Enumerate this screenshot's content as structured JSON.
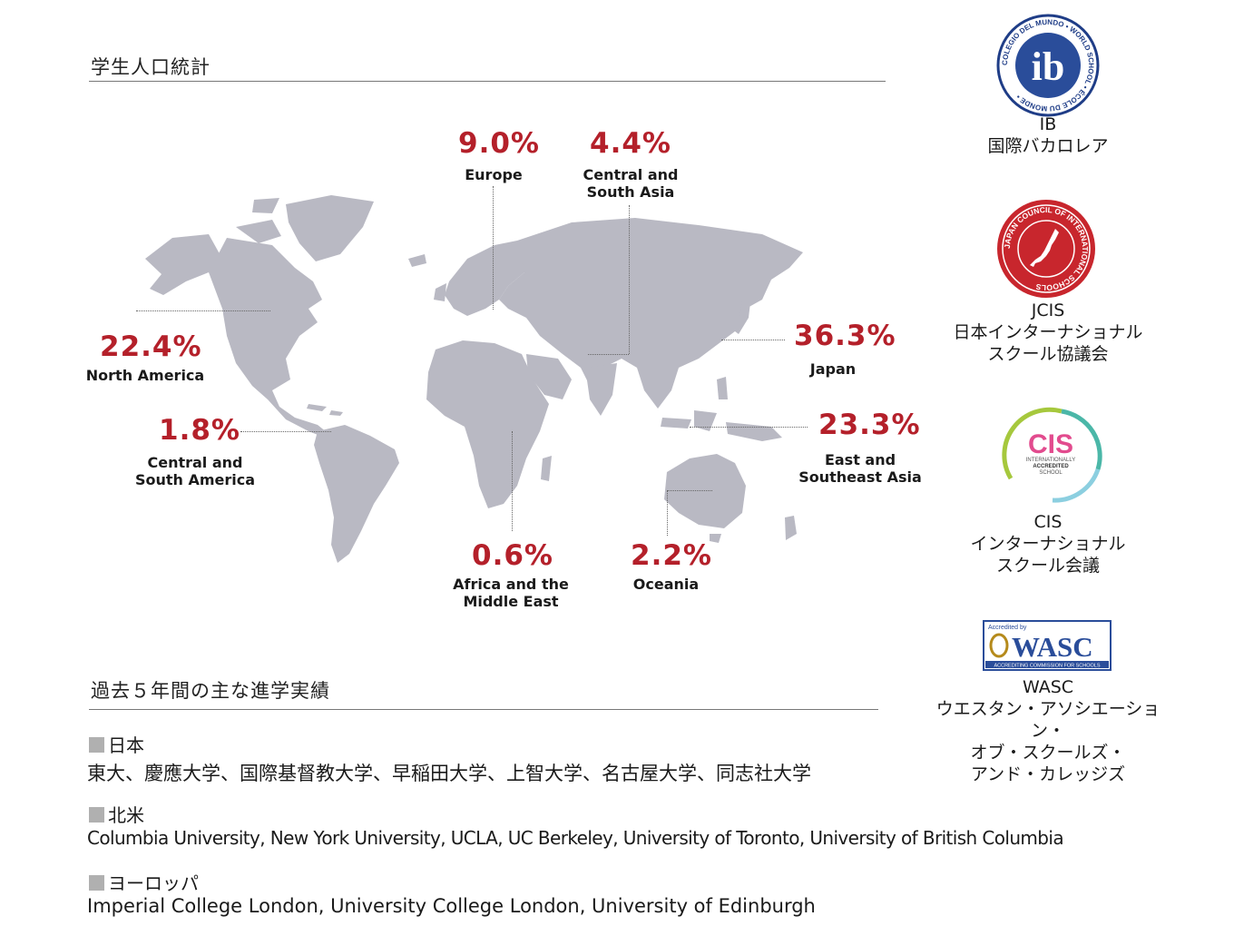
{
  "page": {
    "stats_title": "学生人口統計",
    "results_title": "過去５年間の主な進学実績"
  },
  "colors": {
    "accent": "#b4202a",
    "land": "#b9b9c3",
    "rule": "#777777"
  },
  "chart_data": {
    "type": "map",
    "title": "",
    "regions": [
      {
        "name": "Europe",
        "label": "Europe",
        "value": 9.0,
        "display": "9.0%"
      },
      {
        "name": "Central and South Asia",
        "label": "Central and\nSouth Asia",
        "value": 4.4,
        "display": "4.4%"
      },
      {
        "name": "North America",
        "label": "North America",
        "value": 22.4,
        "display": "22.4%"
      },
      {
        "name": "Japan",
        "label": "Japan",
        "value": 36.3,
        "display": "36.3%"
      },
      {
        "name": "Central and South America",
        "label": "Central and\nSouth America",
        "value": 1.8,
        "display": "1.8%"
      },
      {
        "name": "East and Southeast Asia",
        "label": "East and\nSoutheast Asia",
        "value": 23.3,
        "display": "23.3%"
      },
      {
        "name": "Africa and the Middle East",
        "label": "Africa and the\nMiddle East",
        "value": 0.6,
        "display": "0.6%"
      },
      {
        "name": "Oceania",
        "label": "Oceania",
        "value": 2.2,
        "display": "2.2%"
      }
    ]
  },
  "accreditations": [
    {
      "icon": "ib-logo-icon",
      "seal_text": "COLEGIO DEL MUNDO • WORLD SCHOOL • ÉCOLE DU MONDE •",
      "mark": "ib",
      "name": "IB\n国際バカロレア"
    },
    {
      "icon": "jcis-logo-icon",
      "seal_text": "JAPAN COUNCIL OF INTERNATIONAL SCHOOLS",
      "name": "JCIS\n日本インターナショナル\nスクール協議会"
    },
    {
      "icon": "cis-logo-icon",
      "mark": "CIS",
      "sub": "INTERNATIONALLY\nACCREDITED\nSCHOOL",
      "name": "CIS\nインターナショナル\nスクール会議"
    },
    {
      "icon": "wasc-logo-icon",
      "mark": "WASC",
      "top": "Accredited by",
      "bottom": "ACCREDITING COMMISSION  FOR SCHOOLS",
      "name": "WASC\nウエスタン・アソシエーション・\nオブ・スクールズ・\nアンド・カレッジズ"
    }
  ],
  "universities": [
    {
      "region": "日本",
      "list": "東大、慶應大学、国際基督教大学、早稲田大学、上智大学、名古屋大学、同志社大学"
    },
    {
      "region": "北米",
      "list": "Columbia University, New York University, UCLA, UC Berkeley, University of Toronto, University of British Columbia"
    },
    {
      "region": "ヨーロッパ",
      "list": "Imperial College London, University College London, University of Edinburgh"
    }
  ]
}
